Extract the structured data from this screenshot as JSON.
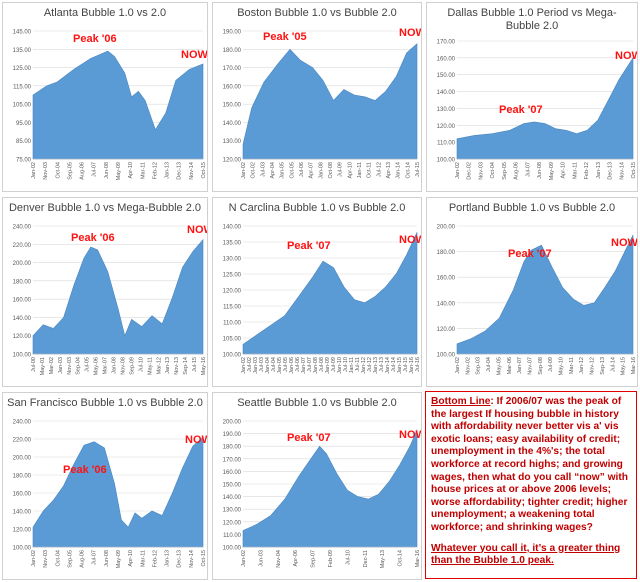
{
  "colors": {
    "area": "#5b9bd5",
    "label": "#ff1111",
    "grid": "#d9d9d9",
    "tick": "#595959"
  },
  "panels": [
    {
      "title": "Atlanta Bubble 1.0 vs 2.0",
      "peak_label": "Peak '06",
      "now_label": "NOW",
      "y_ticks": [
        "75.00",
        "85.00",
        "95.00",
        "105.00",
        "115.00",
        "125.00",
        "135.00",
        "145.00"
      ],
      "ylim": [
        75,
        145
      ],
      "x_ticks": [
        "Jan-02",
        "Nov-03",
        "Oct-04",
        "Sep-05",
        "Aug-06",
        "Jul-07",
        "Jun-08",
        "May-09",
        "Apr-10",
        "Mar-11",
        "Feb-12",
        "Jan-13",
        "Dec-13",
        "Nov-14",
        "Oct-15"
      ],
      "series_x": [
        0,
        8,
        14,
        24,
        34,
        44,
        48,
        54,
        58,
        62,
        66,
        72,
        78,
        84,
        92,
        100
      ],
      "series_y": [
        110,
        115,
        117,
        124,
        130,
        134,
        131,
        122,
        109,
        112,
        107,
        91,
        100,
        118,
        124,
        127
      ]
    },
    {
      "title": "Boston Bubble 1.0 vs Bubble 2.0",
      "peak_label": "Peak '05",
      "now_label": "NOW",
      "y_ticks": [
        "120.00",
        "130.00",
        "140.00",
        "150.00",
        "160.00",
        "170.00",
        "180.00",
        "190.00"
      ],
      "ylim": [
        120,
        190
      ],
      "x_ticks": [
        "Jan-02",
        "Oct-02",
        "Jul-03",
        "Apr-04",
        "Jan-05",
        "Oct-05",
        "Jul-06",
        "Apr-07",
        "Jan-08",
        "Oct-08",
        "Jul-09",
        "Apr-10",
        "Jan-11",
        "Oct-11",
        "Jul-12",
        "Apr-13",
        "Jan-14",
        "Oct-14",
        "Jul-15"
      ],
      "series_x": [
        0,
        5,
        12,
        20,
        27,
        33,
        40,
        46,
        52,
        58,
        64,
        70,
        76,
        82,
        88,
        94,
        100
      ],
      "series_y": [
        128,
        148,
        162,
        172,
        180,
        174,
        170,
        163,
        152,
        158,
        155,
        154,
        152,
        157,
        165,
        178,
        183
      ]
    },
    {
      "title": "Dallas Bubble 1.0 Period vs Mega-Bubble 2.0",
      "peak_label": "Peak '07",
      "now_label": "NOW",
      "y_ticks": [
        "100.00",
        "110.00",
        "120.00",
        "130.00",
        "140.00",
        "150.00",
        "160.00",
        "170.00"
      ],
      "ylim": [
        100,
        170
      ],
      "x_ticks": [
        "Jan-02",
        "Dec-02",
        "Nov-03",
        "Oct-04",
        "Sep-05",
        "Aug-06",
        "Jul-07",
        "Jun-08",
        "May-09",
        "Apr-10",
        "Mar-11",
        "Feb-12",
        "Jan-13",
        "Dec-13",
        "Nov-14",
        "Oct-15"
      ],
      "series_x": [
        0,
        10,
        20,
        30,
        38,
        44,
        50,
        56,
        62,
        68,
        74,
        80,
        86,
        92,
        100
      ],
      "series_y": [
        112,
        114,
        115,
        117,
        121,
        122,
        121,
        118,
        117,
        115,
        117,
        123,
        135,
        147,
        160
      ]
    },
    {
      "title": "Denver Bubble 1.0 vs Mega-Bubble 2.0",
      "peak_label": "Peak '06",
      "now_label": "NOW",
      "y_ticks": [
        "100.00",
        "120.00",
        "140.00",
        "160.00",
        "180.00",
        "200.00",
        "220.00",
        "240.00"
      ],
      "ylim": [
        100,
        240
      ],
      "x_ticks": [
        "Jul-00",
        "May-01",
        "Mar-02",
        "Jan-03",
        "Nov-03",
        "Sep-04",
        "Jul-05",
        "May-06",
        "Mar-07",
        "Jan-08",
        "Nov-08",
        "Sep-09",
        "Jul-10",
        "May-11",
        "Mar-12",
        "Jan-13",
        "Nov-13",
        "Sep-14",
        "Jul-15",
        "May-16"
      ],
      "series_x": [
        0,
        6,
        12,
        18,
        24,
        30,
        34,
        38,
        44,
        50,
        54,
        58,
        64,
        70,
        76,
        82,
        88,
        94,
        100
      ],
      "series_y": [
        120,
        132,
        128,
        140,
        175,
        205,
        217,
        214,
        190,
        150,
        120,
        138,
        130,
        142,
        133,
        162,
        195,
        212,
        225
      ]
    },
    {
      "title": "N Carclina Bubble 1.0 vs Bubble 2.0",
      "peak_label": "Peak '07",
      "now_label": "NOW",
      "y_ticks": [
        "100.00",
        "105.00",
        "110.00",
        "115.00",
        "120.00",
        "125.00",
        "130.00",
        "135.00",
        "140.00"
      ],
      "ylim": [
        100,
        140
      ],
      "x_ticks": [
        "Jan-02",
        "Jul-02",
        "Jan-03",
        "Jul-03",
        "Jan-04",
        "Jul-04",
        "Jan-05",
        "Jul-05",
        "Jan-06",
        "Jul-06",
        "Jan-07",
        "Jul-07",
        "Jan-08",
        "Jul-08",
        "Jan-09",
        "Jul-09",
        "Jan-10",
        "Jul-10",
        "Jan-11",
        "Jul-11",
        "Jan-12",
        "Jul-12",
        "Jan-13",
        "Jul-13",
        "Jan-14",
        "Jul-14",
        "Jan-15",
        "Jul-15",
        "Jan-16",
        "Jul-16"
      ],
      "series_x": [
        0,
        8,
        16,
        24,
        32,
        40,
        46,
        52,
        58,
        64,
        70,
        76,
        82,
        88,
        94,
        100
      ],
      "series_y": [
        103,
        106,
        109,
        112,
        118,
        124,
        129,
        127,
        121,
        117,
        116,
        118,
        121,
        125,
        131,
        138
      ]
    },
    {
      "title": "Portland Bubble 1.0 vs Bubble 2.0",
      "peak_label": "Peak '07",
      "now_label": "NOW",
      "y_ticks": [
        "100.00",
        "120.00",
        "140.00",
        "160.00",
        "180.00",
        "200.00"
      ],
      "ylim": [
        100,
        200
      ],
      "x_ticks": [
        "Jan-02",
        "Nov-02",
        "Sep-03",
        "Jul-04",
        "May-05",
        "Mar-06",
        "Jan-07",
        "Nov-07",
        "Sep-08",
        "Jul-09",
        "May-10",
        "Mar-11",
        "Jan-12",
        "Nov-12",
        "Sep-13",
        "Jul-14",
        "May-15",
        "Mar-16"
      ],
      "series_x": [
        0,
        8,
        16,
        24,
        32,
        38,
        42,
        48,
        54,
        60,
        66,
        72,
        78,
        84,
        90,
        96,
        100
      ],
      "series_y": [
        108,
        112,
        118,
        128,
        150,
        172,
        181,
        185,
        168,
        152,
        143,
        138,
        140,
        152,
        165,
        182,
        193
      ]
    },
    {
      "title": "San Francisco Bubble 1.0 vs Bubble 2.0",
      "peak_label": "Peak '06",
      "now_label": "NOW",
      "y_ticks": [
        "100.00",
        "120.00",
        "140.00",
        "160.00",
        "180.00",
        "200.00",
        "220.00",
        "240.00"
      ],
      "ylim": [
        100,
        240
      ],
      "x_ticks": [
        "Jan-02",
        "Nov-03",
        "Oct-04",
        "Sep-05",
        "Aug-06",
        "Jul-07",
        "Jun-08",
        "May-09",
        "Apr-10",
        "Mar-11",
        "Feb-12",
        "Jan-13",
        "Dec-13",
        "Nov-14",
        "Oct-15"
      ],
      "series_x": [
        0,
        6,
        12,
        18,
        24,
        30,
        36,
        42,
        48,
        52,
        56,
        60,
        64,
        70,
        76,
        82,
        88,
        94,
        100
      ],
      "series_y": [
        122,
        140,
        152,
        168,
        192,
        213,
        217,
        210,
        170,
        130,
        122,
        138,
        132,
        140,
        135,
        160,
        188,
        212,
        222
      ]
    },
    {
      "title": "Seattle Bubble 1.0 vs Bubble 2.0",
      "peak_label": "Peak '07",
      "now_label": "NOW",
      "y_ticks": [
        "100.00",
        "110.00",
        "120.00",
        "130.00",
        "140.00",
        "150.00",
        "160.00",
        "170.00",
        "180.00",
        "190.00",
        "200.00"
      ],
      "ylim": [
        100,
        200
      ],
      "x_ticks": [
        "Jan-02",
        "Jun-03",
        "Nov-04",
        "Apr-06",
        "Sep-07",
        "Feb-09",
        "Jul-10",
        "Dec-11",
        "May-13",
        "Oct-14",
        "Mar-16"
      ],
      "series_x": [
        0,
        8,
        16,
        24,
        32,
        40,
        44,
        48,
        54,
        60,
        66,
        72,
        78,
        84,
        90,
        96,
        100
      ],
      "series_y": [
        113,
        118,
        125,
        138,
        156,
        172,
        180,
        174,
        158,
        145,
        140,
        138,
        142,
        152,
        165,
        180,
        193
      ]
    }
  ],
  "chart_data": [
    {
      "type": "area",
      "title": "Atlanta Bubble 1.0 vs 2.0",
      "ylim": [
        75,
        145
      ],
      "x": [
        0,
        8,
        14,
        24,
        34,
        44,
        48,
        54,
        58,
        62,
        66,
        72,
        78,
        84,
        92,
        100
      ],
      "values": [
        110,
        115,
        117,
        124,
        130,
        134,
        131,
        122,
        109,
        112,
        107,
        91,
        100,
        118,
        124,
        127
      ]
    },
    {
      "type": "area",
      "title": "Boston Bubble 1.0 vs Bubble 2.0",
      "ylim": [
        120,
        190
      ],
      "x": [
        0,
        5,
        12,
        20,
        27,
        33,
        40,
        46,
        52,
        58,
        64,
        70,
        76,
        82,
        88,
        94,
        100
      ],
      "values": [
        128,
        148,
        162,
        172,
        180,
        174,
        170,
        163,
        152,
        158,
        155,
        154,
        152,
        157,
        165,
        178,
        183
      ]
    },
    {
      "type": "area",
      "title": "Dallas Bubble 1.0 Period vs Mega-Bubble 2.0",
      "ylim": [
        100,
        170
      ],
      "x": [
        0,
        10,
        20,
        30,
        38,
        44,
        50,
        56,
        62,
        68,
        74,
        80,
        86,
        92,
        100
      ],
      "values": [
        112,
        114,
        115,
        117,
        121,
        122,
        121,
        118,
        117,
        115,
        117,
        123,
        135,
        147,
        160
      ]
    },
    {
      "type": "area",
      "title": "Denver Bubble 1.0 vs Mega-Bubble 2.0",
      "ylim": [
        100,
        240
      ],
      "x": [
        0,
        6,
        12,
        18,
        24,
        30,
        34,
        38,
        44,
        50,
        54,
        58,
        64,
        70,
        76,
        82,
        88,
        94,
        100
      ],
      "values": [
        120,
        132,
        128,
        140,
        175,
        205,
        217,
        214,
        190,
        150,
        120,
        138,
        130,
        142,
        133,
        162,
        195,
        212,
        225
      ]
    },
    {
      "type": "area",
      "title": "N Carclina Bubble 1.0 vs Bubble 2.0",
      "ylim": [
        100,
        140
      ],
      "x": [
        0,
        8,
        16,
        24,
        32,
        40,
        46,
        52,
        58,
        64,
        70,
        76,
        82,
        88,
        94,
        100
      ],
      "values": [
        103,
        106,
        109,
        112,
        118,
        124,
        129,
        127,
        121,
        117,
        116,
        118,
        121,
        125,
        131,
        138
      ]
    },
    {
      "type": "area",
      "title": "Portland Bubble 1.0 vs Bubble 2.0",
      "ylim": [
        100,
        200
      ],
      "x": [
        0,
        8,
        16,
        24,
        32,
        38,
        42,
        48,
        54,
        60,
        66,
        72,
        78,
        84,
        90,
        96,
        100
      ],
      "values": [
        108,
        112,
        118,
        128,
        150,
        172,
        181,
        185,
        168,
        152,
        143,
        138,
        140,
        152,
        165,
        182,
        193
      ]
    },
    {
      "type": "area",
      "title": "San Francisco Bubble 1.0 vs Bubble 2.0",
      "ylim": [
        100,
        240
      ],
      "x": [
        0,
        6,
        12,
        18,
        24,
        30,
        36,
        42,
        48,
        52,
        56,
        60,
        64,
        70,
        76,
        82,
        88,
        94,
        100
      ],
      "values": [
        122,
        140,
        152,
        168,
        192,
        213,
        217,
        210,
        170,
        130,
        122,
        138,
        132,
        140,
        135,
        160,
        188,
        212,
        222
      ]
    },
    {
      "type": "area",
      "title": "Seattle Bubble 1.0 vs Bubble 2.0",
      "ylim": [
        100,
        200
      ],
      "x": [
        0,
        8,
        16,
        24,
        32,
        40,
        44,
        48,
        54,
        60,
        66,
        72,
        78,
        84,
        90,
        96,
        100
      ],
      "values": [
        113,
        118,
        125,
        138,
        156,
        172,
        180,
        174,
        158,
        145,
        140,
        138,
        142,
        152,
        165,
        180,
        193
      ]
    }
  ],
  "bottom_line": {
    "heading": "Bottom Line",
    "body": ":  If 2006/07 was the peak of the largest If housing bubble in history with affordability never better vis a' vis exotic loans;  easy availability of credit; unemployment in the 4%'s;  the total workforce at record highs;  and growing wages, then what do you call “now” with house prices at or above 2006 levels; worse affordability;  tighter credit;  higher unemployment;  a weakening total workforce;  and shrinking wages?",
    "conclusion": "Whatever you call it, it’s a greater thing than the Bubble 1.0 peak."
  }
}
